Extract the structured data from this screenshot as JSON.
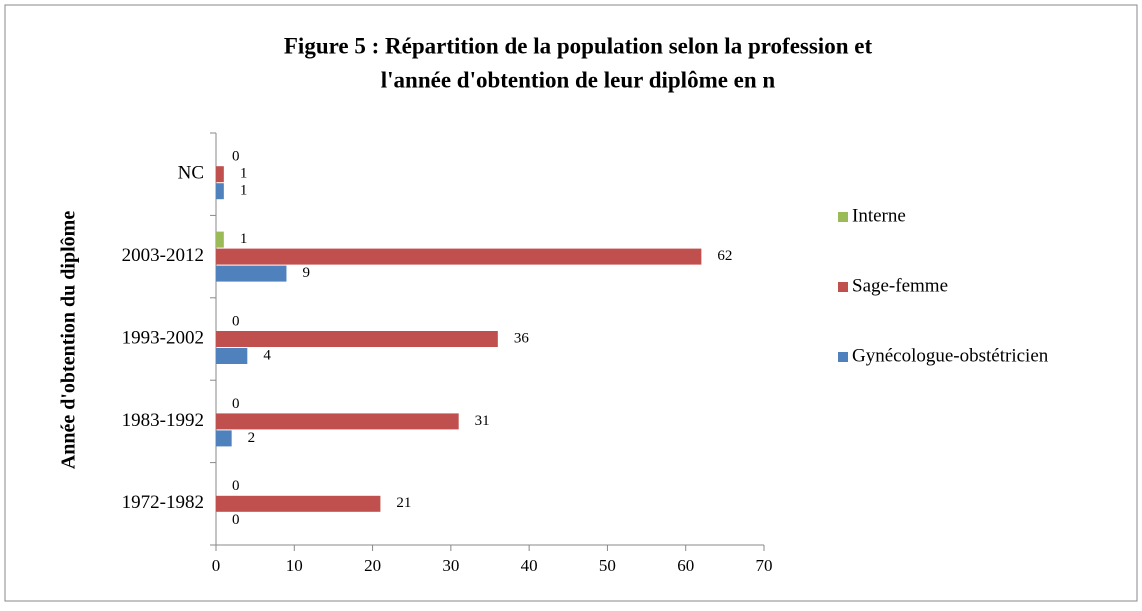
{
  "chart_data": {
    "type": "bar",
    "orientation": "horizontal",
    "title": "Figure 5 : Répartition de la population selon la profession et",
    "subtitle": "l'année d'obtention de leur diplôme en n",
    "y_label": "Année d'obtention du diplôme",
    "categories": [
      "1972-1982",
      "1983-1992",
      "1993-2002",
      "2003-2012",
      "NC"
    ],
    "series": [
      {
        "name": "Gynécologue-obstétricien",
        "color": "#4f81bd",
        "values": [
          0,
          2,
          4,
          9,
          1
        ]
      },
      {
        "name": "Sage-femme",
        "color": "#c0504d",
        "values": [
          21,
          31,
          36,
          62,
          1
        ]
      },
      {
        "name": "Interne",
        "color": "#9bbb59",
        "values": [
          0,
          0,
          0,
          1,
          0
        ]
      }
    ],
    "xlim": [
      0,
      70
    ],
    "xticks": [
      0,
      10,
      20,
      30,
      40,
      50,
      60,
      70
    ],
    "grid": false,
    "legend": "right"
  }
}
